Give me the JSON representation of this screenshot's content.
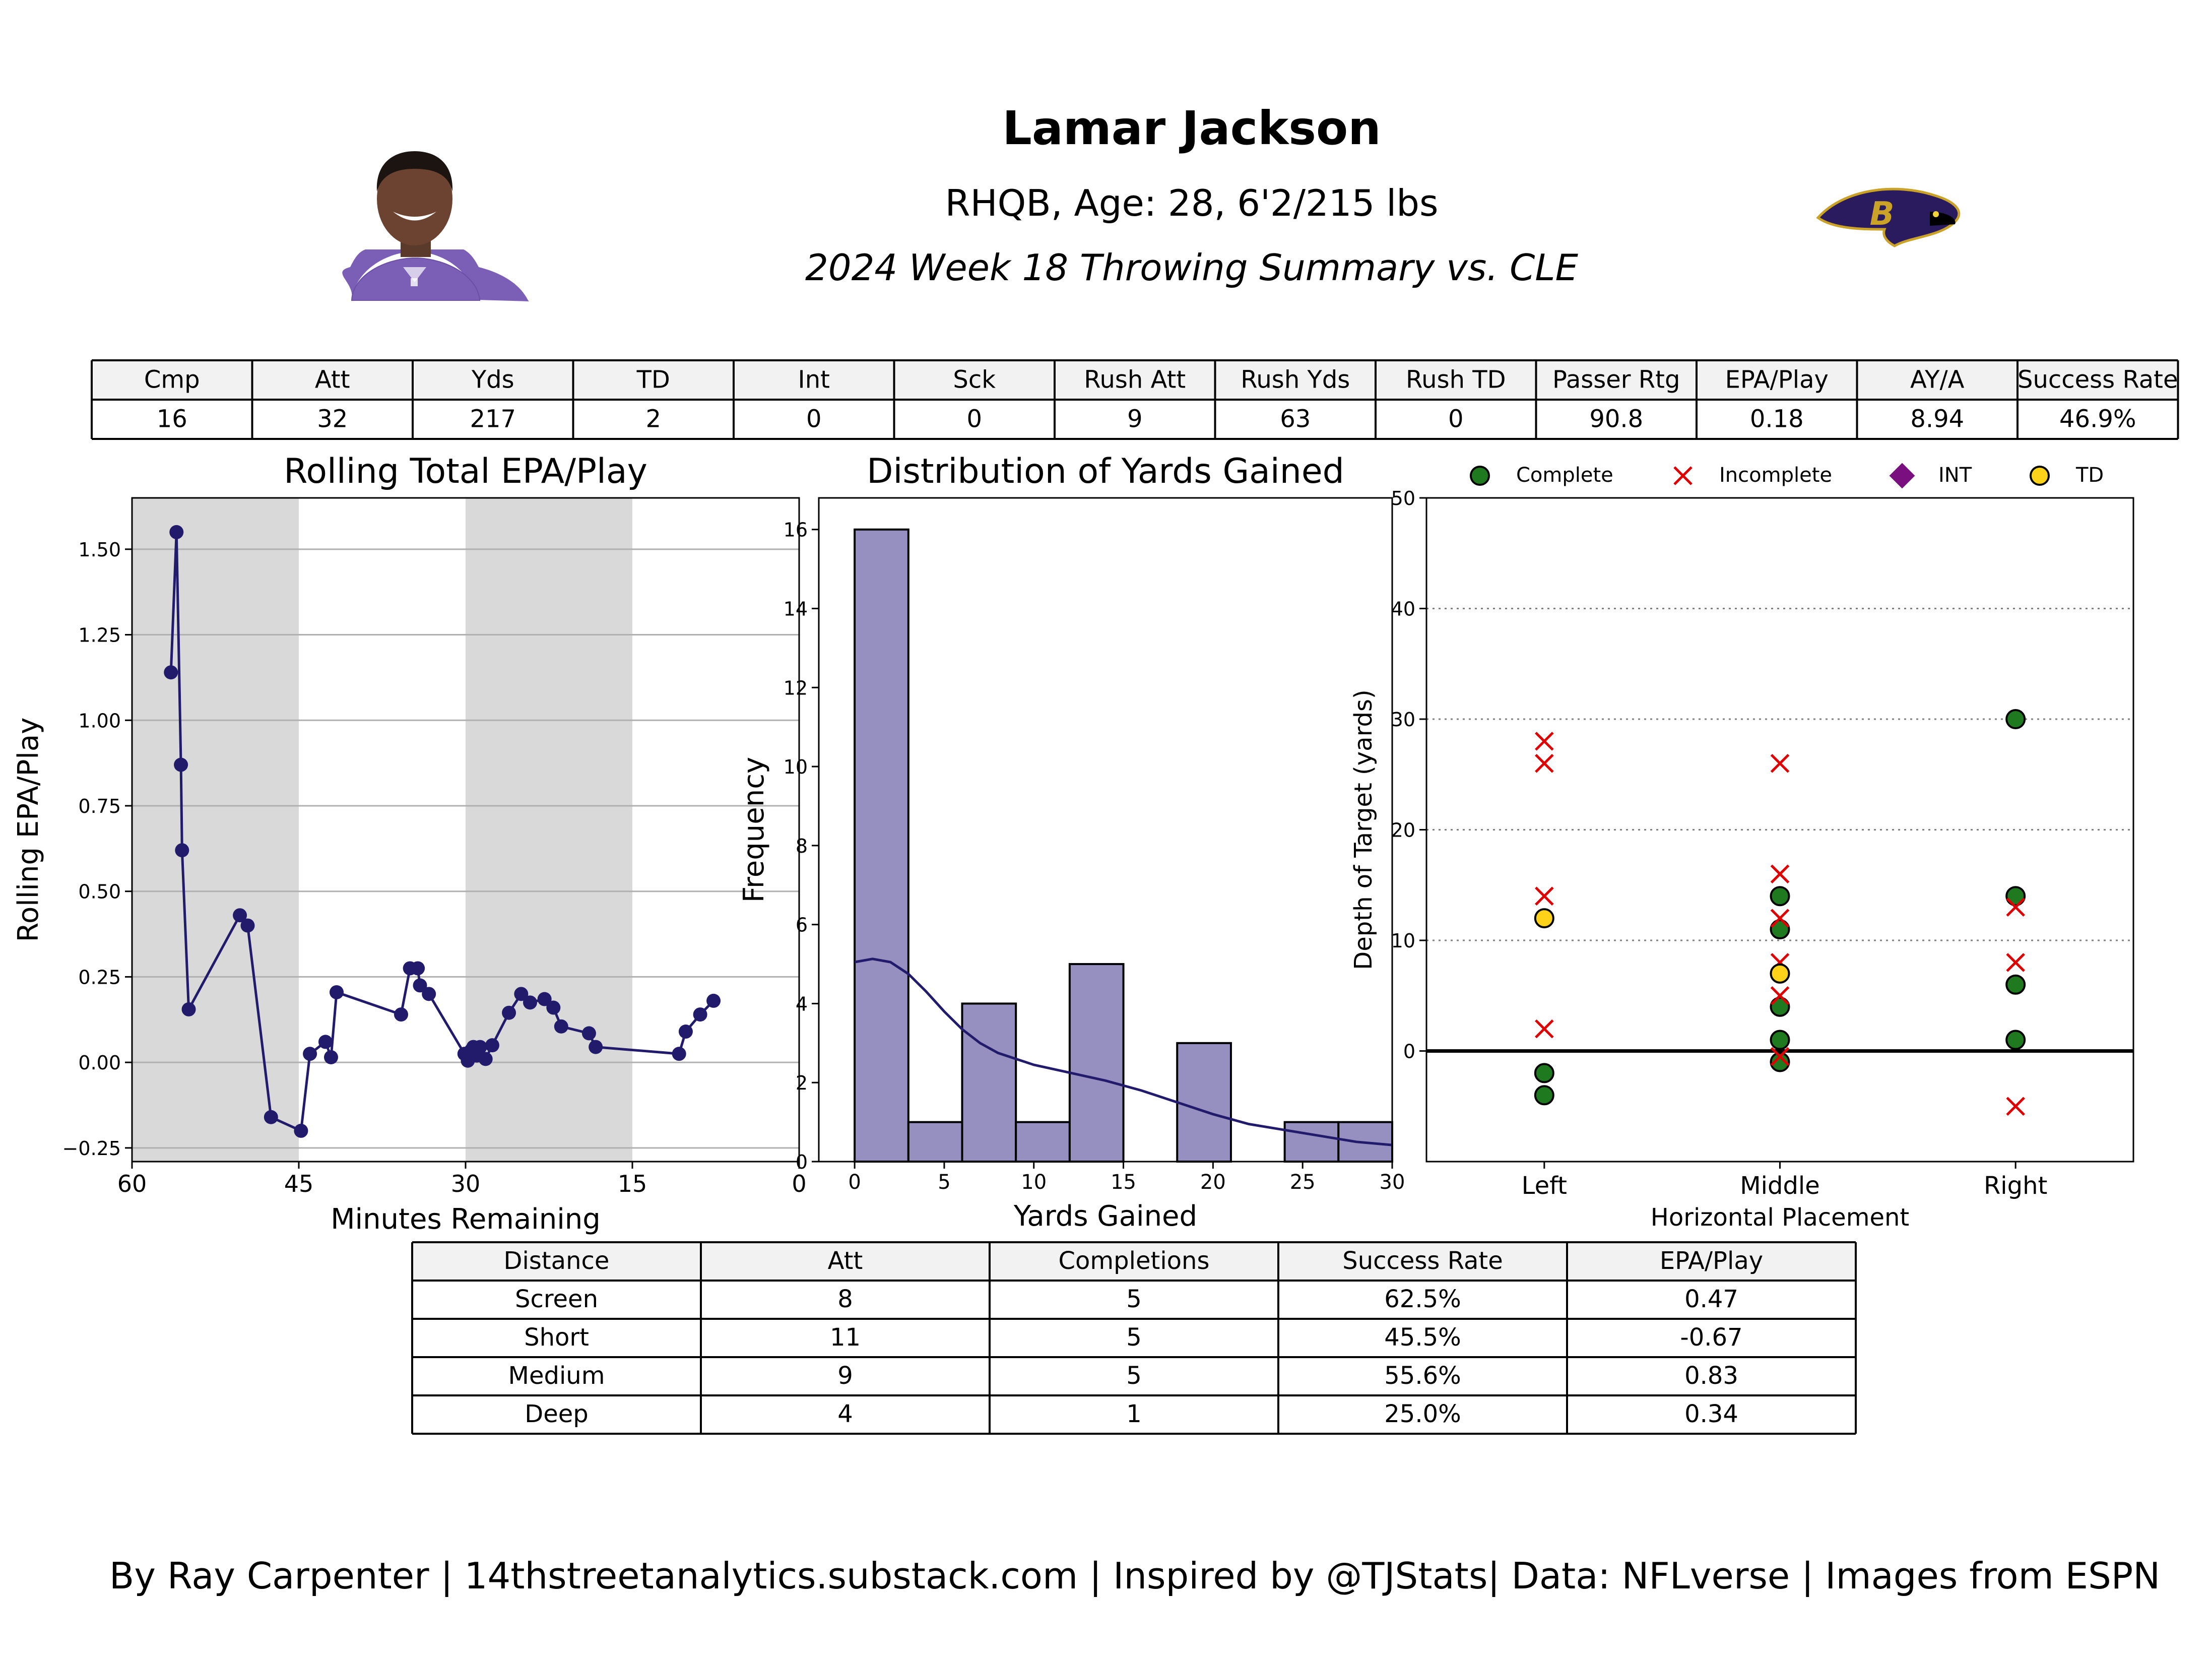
{
  "header": {
    "name": "Lamar Jackson",
    "bio": "RHQB, Age: 28, 6'2/215 lbs",
    "subtitle": "2024 Week 18 Throwing Summary vs. CLE",
    "player_photo_icon": "player-headshot-photo",
    "team_logo_icon": "baltimore-ravens-logo"
  },
  "summary_table": {
    "headers": [
      "Cmp",
      "Att",
      "Yds",
      "TD",
      "Int",
      "Sck",
      "Rush Att",
      "Rush Yds",
      "Rush TD",
      "Passer Rtg",
      "EPA/Play",
      "AY/A",
      "Success Rate"
    ],
    "values": [
      "16",
      "32",
      "217",
      "2",
      "0",
      "0",
      "9",
      "63",
      "0",
      "90.8",
      "0.18",
      "8.94",
      "46.9%"
    ]
  },
  "distance_table": {
    "headers": [
      "Distance",
      "Att",
      "Completions",
      "Success Rate",
      "EPA/Play"
    ],
    "rows": [
      [
        "Screen",
        "8",
        "5",
        "62.5%",
        "0.47"
      ],
      [
        "Short",
        "11",
        "5",
        "45.5%",
        "-0.67"
      ],
      [
        "Medium",
        "9",
        "5",
        "55.6%",
        "0.83"
      ],
      [
        "Deep",
        "4",
        "1",
        "25.0%",
        "0.34"
      ]
    ]
  },
  "footer": {
    "credit": "By Ray Carpenter | 14thstreetanalytics.substack.com | Inspired by @TJStats| Data: NFLverse | Images from ESPN"
  },
  "colors": {
    "line": "#221a6b",
    "hist_bar": "#9590c0",
    "complete": "#1f7a1f",
    "incomplete": "#e00000",
    "int": "#7a1080",
    "td": "#ffd21a",
    "quarter_shade": "#d9d9d9",
    "table_header_bg": "#f2f2f2"
  },
  "chart_data": [
    {
      "type": "line",
      "title": "Rolling Total EPA/Play",
      "xlabel": "Minutes Remaining",
      "ylabel": "Rolling EPA/Play",
      "xlim": [
        60,
        0
      ],
      "ylim": [
        -0.29,
        1.65
      ],
      "xticks": [
        "60",
        "45",
        "30",
        "15",
        "0"
      ],
      "xtick_values": [
        60,
        45,
        30,
        15,
        0
      ],
      "yticks": [
        "−0.25",
        "0.00",
        "0.25",
        "0.50",
        "0.75",
        "1.00",
        "1.25",
        "1.50"
      ],
      "ytick_values": [
        -0.25,
        0,
        0.25,
        0.5,
        0.75,
        1.0,
        1.25,
        1.5
      ],
      "grid": "y",
      "shaded_x_ranges": [
        [
          60,
          45
        ],
        [
          30,
          15
        ]
      ],
      "x": [
        56.5,
        56.0,
        55.6,
        55.5,
        54.9,
        50.3,
        49.6,
        47.5,
        44.8,
        44.0,
        42.6,
        42.1,
        41.6,
        35.8,
        35.0,
        34.3,
        34.1,
        33.3,
        30.1,
        29.8,
        29.5,
        29.3,
        29.0,
        28.7,
        28.2,
        27.6,
        26.1,
        25.0,
        24.2,
        22.9,
        22.1,
        21.4,
        18.9,
        18.3,
        10.8,
        10.2,
        8.9,
        7.7
      ],
      "y": [
        1.14,
        1.55,
        0.87,
        0.62,
        0.155,
        0.43,
        0.4,
        -0.16,
        -0.2,
        0.025,
        0.06,
        0.015,
        0.205,
        0.14,
        0.275,
        0.275,
        0.225,
        0.2,
        0.025,
        0.005,
        0.035,
        0.045,
        0.02,
        0.045,
        0.01,
        0.05,
        0.145,
        0.2,
        0.175,
        0.185,
        0.16,
        0.105,
        0.085,
        0.045,
        0.025,
        0.09,
        0.14,
        0.18
      ]
    },
    {
      "type": "bar",
      "title": "Distribution of Yards Gained",
      "xlabel": "Yards Gained",
      "ylabel": "Frequency",
      "xlim": [
        -2,
        30
      ],
      "ylim": [
        0,
        16.8
      ],
      "xticks": [
        "0",
        "5",
        "10",
        "15",
        "20",
        "25",
        "30"
      ],
      "xtick_values": [
        0,
        5,
        10,
        15,
        20,
        25,
        30
      ],
      "yticks": [
        "0",
        "2",
        "4",
        "6",
        "8",
        "10",
        "12",
        "14",
        "16"
      ],
      "ytick_values": [
        0,
        2,
        4,
        6,
        8,
        10,
        12,
        14,
        16
      ],
      "bin_edges": [
        0,
        3,
        6,
        9,
        12,
        15,
        18,
        21,
        24,
        27,
        30
      ],
      "counts": [
        16,
        1,
        4,
        1,
        5,
        0,
        3,
        0,
        1,
        1
      ],
      "kde_x": [
        0,
        1,
        2,
        3,
        4,
        5,
        6,
        7,
        8,
        10,
        12,
        14,
        16,
        18,
        20,
        22,
        24,
        26,
        28,
        30
      ],
      "kde_y": [
        5.05,
        5.13,
        5.05,
        4.75,
        4.3,
        3.8,
        3.35,
        3.0,
        2.75,
        2.45,
        2.25,
        2.05,
        1.8,
        1.5,
        1.2,
        0.95,
        0.8,
        0.65,
        0.5,
        0.42
      ]
    },
    {
      "type": "scatter",
      "xlabel": "Horizontal Placement",
      "ylabel": "Depth of Target (yards)",
      "categories": [
        "Left",
        "Middle",
        "Right"
      ],
      "xlim": [
        -0.5,
        2.5
      ],
      "ylim": [
        -10,
        50
      ],
      "yticks": [
        "0",
        "10",
        "20",
        "30",
        "40",
        "50"
      ],
      "ytick_values": [
        0,
        10,
        20,
        30,
        40,
        50
      ],
      "grid": "y-dotted",
      "zero_line": 0,
      "legend": [
        "Complete",
        "Incomplete",
        "INT",
        "TD"
      ],
      "legend_placement": "top",
      "series": [
        {
          "name": "Complete",
          "marker": "circle",
          "points": [
            [
              0,
              -2
            ],
            [
              0,
              -4
            ],
            [
              1,
              14
            ],
            [
              1,
              11
            ],
            [
              1,
              4
            ],
            [
              1,
              1
            ],
            [
              1,
              -1
            ],
            [
              2,
              30
            ],
            [
              2,
              14
            ],
            [
              2,
              6
            ],
            [
              2,
              1
            ]
          ]
        },
        {
          "name": "Incomplete",
          "marker": "x",
          "points": [
            [
              0,
              28
            ],
            [
              0,
              26
            ],
            [
              0,
              14
            ],
            [
              0,
              2
            ],
            [
              1,
              26
            ],
            [
              1,
              16
            ],
            [
              1,
              12
            ],
            [
              1,
              8
            ],
            [
              1,
              5
            ],
            [
              1,
              -0.5
            ],
            [
              2,
              13
            ],
            [
              2,
              8
            ],
            [
              2,
              -5
            ]
          ]
        },
        {
          "name": "INT",
          "marker": "diamond",
          "points": []
        },
        {
          "name": "TD",
          "marker": "circle",
          "points": [
            [
              0,
              12
            ],
            [
              1,
              7
            ]
          ]
        }
      ]
    }
  ]
}
